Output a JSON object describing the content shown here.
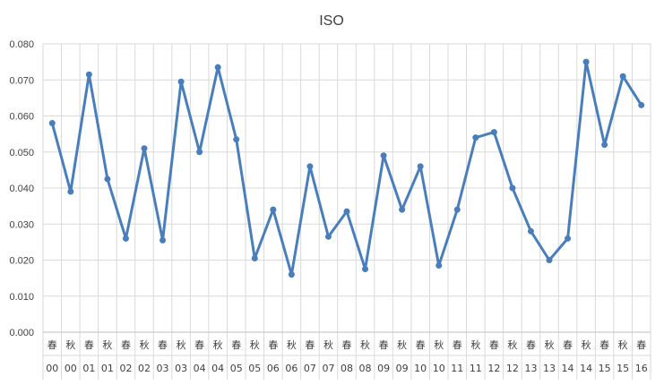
{
  "chart_data": {
    "type": "line",
    "title": "ISO",
    "xlabel": "",
    "ylabel": "",
    "ylim": [
      0,
      0.08
    ],
    "yticks": [
      "0.000",
      "0.010",
      "0.020",
      "0.030",
      "0.040",
      "0.050",
      "0.060",
      "0.070",
      "0.080"
    ],
    "grid": true,
    "legend": "none",
    "colors": {
      "line": "#4a7ebb",
      "grid": "#d9d9d9",
      "axis": "#bfbfbf",
      "text": "#404040"
    },
    "categories": [
      {
        "season": "春",
        "year": "00"
      },
      {
        "season": "秋",
        "year": "00"
      },
      {
        "season": "春",
        "year": "01"
      },
      {
        "season": "秋",
        "year": "01"
      },
      {
        "season": "春",
        "year": "02"
      },
      {
        "season": "秋",
        "year": "02"
      },
      {
        "season": "春",
        "year": "03"
      },
      {
        "season": "秋",
        "year": "03"
      },
      {
        "season": "春",
        "year": "04"
      },
      {
        "season": "秋",
        "year": "04"
      },
      {
        "season": "春",
        "year": "05"
      },
      {
        "season": "秋",
        "year": "05"
      },
      {
        "season": "春",
        "year": "06"
      },
      {
        "season": "秋",
        "year": "06"
      },
      {
        "season": "春",
        "year": "07"
      },
      {
        "season": "秋",
        "year": "07"
      },
      {
        "season": "春",
        "year": "08"
      },
      {
        "season": "秋",
        "year": "08"
      },
      {
        "season": "春",
        "year": "09"
      },
      {
        "season": "秋",
        "year": "09"
      },
      {
        "season": "春",
        "year": "10"
      },
      {
        "season": "秋",
        "year": "10"
      },
      {
        "season": "春",
        "year": "11"
      },
      {
        "season": "秋",
        "year": "11"
      },
      {
        "season": "春",
        "year": "12"
      },
      {
        "season": "秋",
        "year": "12"
      },
      {
        "season": "春",
        "year": "13"
      },
      {
        "season": "秋",
        "year": "13"
      },
      {
        "season": "春",
        "year": "14"
      },
      {
        "season": "秋",
        "year": "14"
      },
      {
        "season": "春",
        "year": "15"
      },
      {
        "season": "秋",
        "year": "15"
      },
      {
        "season": "春",
        "year": "16"
      }
    ],
    "values": [
      0.058,
      0.039,
      0.0715,
      0.0425,
      0.026,
      0.051,
      0.0255,
      0.0695,
      0.05,
      0.0735,
      0.0535,
      0.0205,
      0.034,
      0.016,
      0.046,
      0.0265,
      0.0335,
      0.0175,
      0.049,
      0.034,
      0.046,
      0.0185,
      0.034,
      0.054,
      0.0555,
      0.04,
      0.028,
      0.02,
      0.026,
      0.075,
      0.052,
      0.071,
      0.063
    ]
  }
}
